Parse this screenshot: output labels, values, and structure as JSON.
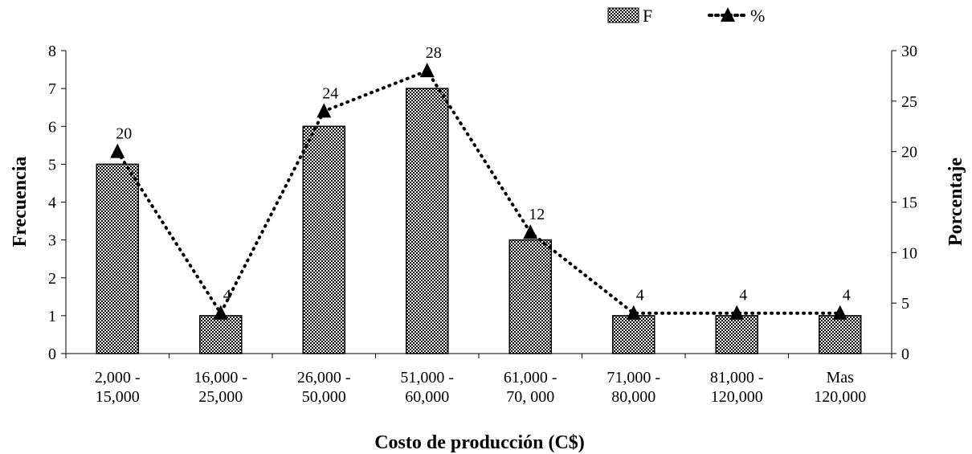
{
  "chart_data": {
    "type": "bar",
    "categories": [
      [
        "2,000 -",
        "15,000"
      ],
      [
        "16,000 -",
        "25,000"
      ],
      [
        "26,000 -",
        "50,000"
      ],
      [
        "51,000 -",
        "60,000"
      ],
      [
        "61,000 -",
        "70, 000"
      ],
      [
        "71,000 -",
        "80,000"
      ],
      [
        "81,000 -",
        "120,000"
      ],
      [
        "Mas",
        "120,000"
      ]
    ],
    "series": [
      {
        "name": "F",
        "type": "bar",
        "axis": "left",
        "values": [
          5,
          1,
          6,
          7,
          3,
          1,
          1,
          1
        ],
        "pattern": "dotted-crosshatch"
      },
      {
        "name": "%",
        "type": "line",
        "axis": "right",
        "values": [
          20,
          4,
          24,
          28,
          12,
          4,
          4,
          4
        ],
        "line_style": "dotted",
        "marker": "triangle",
        "data_labels": [
          "20",
          "4",
          "24",
          "28",
          "12",
          "4",
          "4",
          "4"
        ]
      }
    ],
    "xlabel": "Costo de producción (C$)",
    "ylabel": "Frecuencia",
    "y2label": "Porcentaje",
    "ylim": [
      0,
      8
    ],
    "y2lim": [
      0,
      30
    ],
    "yticks": [
      "0",
      "1",
      "2",
      "3",
      "4",
      "5",
      "6",
      "7",
      "8"
    ],
    "y2ticks": [
      "0",
      "5",
      "10",
      "15",
      "20",
      "25",
      "30"
    ],
    "legend": {
      "position": "top-right",
      "entries": [
        "F",
        "%"
      ]
    },
    "grid": false,
    "colors": {
      "bar_fill": "#ffffff",
      "bar_pattern": "#000000",
      "line": "#000000"
    }
  }
}
